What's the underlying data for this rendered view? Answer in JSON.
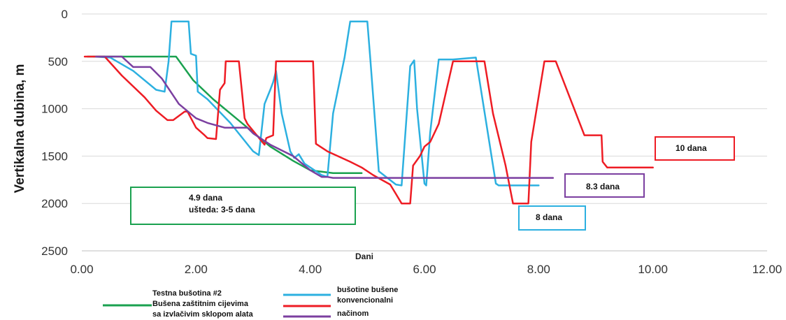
{
  "chart_data": {
    "type": "line",
    "title": "",
    "xlabel": "Dani",
    "ylabel": "Vertikalna dubina, m",
    "xlim": [
      0,
      12
    ],
    "ylim": [
      2500,
      0
    ],
    "y_inverted": true,
    "x_ticks": [
      "0.00",
      "2.00",
      "4.00",
      "6.00",
      "8.00",
      "10.00",
      "12.00"
    ],
    "y_ticks": [
      "0",
      "500",
      "1000",
      "1500",
      "2000",
      "2500"
    ],
    "grid": "horizontal",
    "series": [
      {
        "color": "#1aa14f",
        "x": [
          0.1,
          1.65,
          1.95,
          2.3,
          2.8,
          3.3,
          3.7,
          4.0,
          4.4,
          4.9
        ],
        "y": [
          450,
          450,
          700,
          900,
          1150,
          1400,
          1550,
          1650,
          1680,
          1680
        ]
      },
      {
        "color": "#2cb0e0",
        "x": [
          0.2,
          0.5,
          0.9,
          1.3,
          1.45,
          1.52,
          1.57,
          1.87,
          1.91,
          2.0,
          2.03,
          2.2,
          2.6,
          3.0,
          3.1,
          3.2,
          3.3,
          3.35,
          3.4,
          3.5,
          3.65,
          3.72,
          3.8,
          3.9,
          4.2,
          4.3,
          4.4,
          4.6,
          4.7,
          5.0,
          5.05,
          5.2,
          5.5,
          5.6,
          5.75,
          5.82,
          5.87,
          6.0,
          6.03,
          6.1,
          6.25,
          6.5,
          6.9,
          7.25,
          7.3,
          8.0
        ],
        "y": [
          450,
          460,
          600,
          800,
          820,
          500,
          80,
          80,
          420,
          440,
          820,
          900,
          1150,
          1450,
          1490,
          950,
          800,
          720,
          600,
          1050,
          1450,
          1520,
          1480,
          1580,
          1700,
          1720,
          1050,
          460,
          80,
          80,
          460,
          1660,
          1800,
          1810,
          550,
          490,
          1000,
          1790,
          1810,
          1250,
          480,
          480,
          460,
          1790,
          1810,
          1810
        ]
      },
      {
        "color": "#ee1c24",
        "x": [
          0.05,
          0.4,
          0.7,
          1.1,
          1.3,
          1.5,
          1.6,
          1.8,
          1.85,
          2.0,
          2.15,
          2.2,
          2.35,
          2.42,
          2.5,
          2.52,
          2.6,
          2.68,
          2.75,
          2.85,
          2.9,
          3.2,
          3.23,
          3.35,
          3.4,
          4.05,
          4.1,
          4.3,
          4.7,
          4.9,
          5.1,
          5.4,
          5.5,
          5.6,
          5.65,
          5.75,
          5.8,
          5.92,
          6.0,
          6.1,
          6.25,
          6.5,
          7.05,
          7.2,
          7.3,
          7.42,
          7.55,
          7.58,
          7.65,
          7.75,
          7.82,
          7.87,
          8.1,
          8.3,
          8.8,
          9.1,
          9.12,
          9.2,
          9.3,
          10.0
        ],
        "y": [
          450,
          450,
          650,
          880,
          1020,
          1120,
          1120,
          1030,
          1030,
          1200,
          1280,
          1310,
          1320,
          800,
          730,
          500,
          500,
          500,
          500,
          1100,
          1160,
          1380,
          1310,
          1280,
          500,
          500,
          1370,
          1450,
          1560,
          1620,
          1700,
          1800,
          1900,
          2000,
          2000,
          2000,
          1600,
          1500,
          1400,
          1350,
          1160,
          500,
          500,
          1050,
          1300,
          1600,
          2000,
          2000,
          2000,
          2000,
          2000,
          1350,
          500,
          500,
          1280,
          1280,
          1560,
          1620,
          1620,
          1620
        ]
      },
      {
        "color": "#7b3fa0",
        "x": [
          0.25,
          0.7,
          0.9,
          1.2,
          1.4,
          1.7,
          2.0,
          2.2,
          2.5,
          2.9,
          3.0,
          3.3,
          3.7,
          4.0,
          4.2,
          4.3,
          4.4,
          8.25
        ],
        "y": [
          450,
          450,
          560,
          560,
          680,
          950,
          1100,
          1150,
          1200,
          1200,
          1260,
          1380,
          1500,
          1650,
          1720,
          1720,
          1730,
          1730
        ]
      }
    ],
    "annotations": [
      {
        "lines": [
          "4.9 dana",
          "ušteda: 3-5 dana"
        ],
        "color": "#1aa14f"
      },
      {
        "lines": [
          "8 dana"
        ],
        "color": "#2cb0e0"
      },
      {
        "lines": [
          "8.3 dana"
        ],
        "color": "#7b3fa0"
      },
      {
        "lines": [
          "10 dana"
        ],
        "color": "#ee1c24"
      }
    ],
    "legend": [
      {
        "color": "#1aa14f",
        "lines": [
          "Testna bušotina  #2",
          "Bušena zaštitnim cijevima",
          "sa izvlačivim sklopom alata"
        ]
      },
      {
        "color": "#2cb0e0",
        "lines": [
          "bušotine bušene",
          "konvencionalni"
        ]
      },
      {
        "color": "#ee1c24",
        "lines": []
      },
      {
        "color": "#7b3fa0",
        "lines": [
          "načinom"
        ]
      }
    ]
  }
}
